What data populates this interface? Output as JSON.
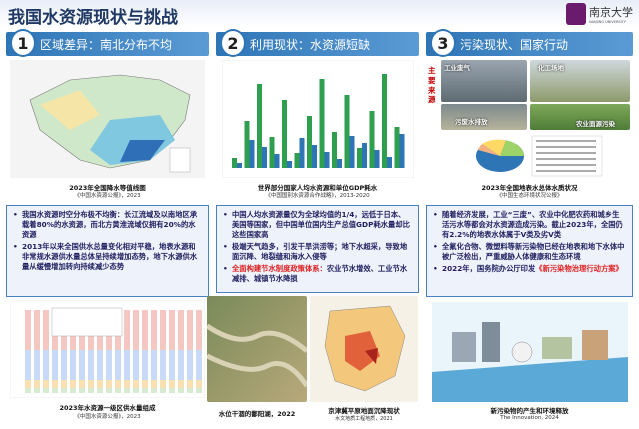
{
  "header": {
    "title": "我国水资源现状与挑战",
    "logo": {
      "name": "南京大学",
      "name_en": "NANJING UNIVERSITY"
    }
  },
  "sections": [
    {
      "number": "1",
      "heading": "区域差异：南北分布不均",
      "figures": [
        {
          "caption": "2023年全国降水等值线图",
          "source": "《中国水资源公报》，2023"
        },
        {
          "caption": "2023年水资源一级区供水量组成",
          "source": "《中国水资源公报》，2023"
        }
      ],
      "bullets": [
        {
          "text": "我国水资源时空分布极不均衡：长江流域及以南地区承载着80%的水资源，而北方黄淮流域仅拥有20%的水资源"
        },
        {
          "text": "2013年以来全国供水总量变化相对平稳，地表水源和非常规水源供水量总体呈持续增加态势，地下水源供水量从缓慢增加转向持续减少态势"
        }
      ]
    },
    {
      "number": "2",
      "heading": "利用现状：水资源短缺",
      "figures": [
        {
          "caption": "世界部分国家人均水资源和单位GDP耗水",
          "source": "《中国国别水资源合作战略》，2013-2020"
        },
        {
          "caption": "水位干涸的鄱阳湖，2022"
        },
        {
          "caption": "京津冀平原地面沉降现状",
          "source": "水文地质工程地质，2021"
        }
      ],
      "bullets": [
        {
          "text": "中国人均水资源量仅为全球均值的1/4，远低于日本、美国等国家，但中国单位国内生产总值GDP耗水量却比这些国家高"
        },
        {
          "text": "极端天气趋多，引发干旱洪涝等；地下水超采，导致地面沉降、地裂缝和海水入侵等"
        },
        {
          "highlight": "全面构建节水制度政策体系：",
          "text": "农业节水增效、工业节水减排、城镇节水降损"
        }
      ]
    },
    {
      "number": "3",
      "heading": "污染现状、国家行动",
      "source_label": "主要来源",
      "photo_labels": [
        "工业废气",
        "化工场地",
        "污废水排放",
        "农业面源污染"
      ],
      "figures": [
        {
          "caption": "2023年全国地表水总体水质状况",
          "source": "《中国生态环境状况公报》"
        },
        {
          "caption": "新污染物的产生和环境释放",
          "source": "The Innovation, 2024"
        }
      ],
      "bullets": [
        {
          "text": "随着经济发展，工业“三废”、农业中化肥农药和城乡生活污水等都会对水资源造成污染。截止2023年，全国仍有2.2%的地表水体属于V类及劣V类"
        },
        {
          "text": "全氟化合物、微塑料等新污染物已经在地表和地下水体中被广泛检出，严重威胁人体健康和生态环境"
        },
        {
          "text": "2022年，国务院办公厅印发",
          "highlight": "《新污染物治理行动方案》"
        }
      ]
    }
  ]
}
